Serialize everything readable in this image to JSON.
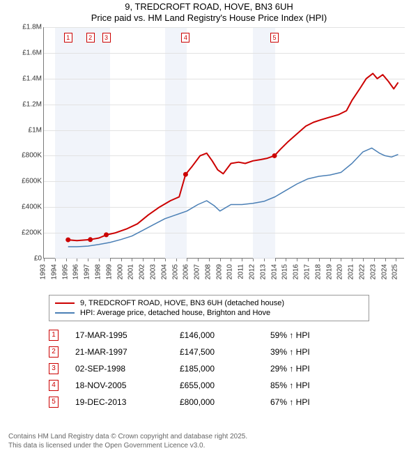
{
  "title": "9, TREDCROFT ROAD, HOVE, BN3 6UH",
  "subtitle": "Price paid vs. HM Land Registry's House Price Index (HPI)",
  "chart": {
    "type": "line",
    "xlim": [
      1993,
      2025.8
    ],
    "ylim": [
      0,
      1800000
    ],
    "ytick_step": 200000,
    "ytick_labels": [
      "£0",
      "£200K",
      "£400K",
      "£600K",
      "£800K",
      "£1M",
      "£1.2M",
      "£1.4M",
      "£1.6M",
      "£1.8M"
    ],
    "xticks": [
      1993,
      1994,
      1995,
      1996,
      1997,
      1998,
      1999,
      2000,
      2001,
      2002,
      2003,
      2004,
      2005,
      2006,
      2007,
      2008,
      2009,
      2010,
      2011,
      2012,
      2013,
      2014,
      2015,
      2016,
      2017,
      2018,
      2019,
      2020,
      2021,
      2022,
      2023,
      2024,
      2025
    ],
    "tint_bands": [
      [
        1994,
        1999
      ],
      [
        2004,
        2006
      ],
      [
        2012,
        2014
      ]
    ],
    "background_color": "#ffffff",
    "grid_color": "#e2e2e2",
    "tint_color": "#eef2f9",
    "axis_color": "#7a7a7a",
    "series": [
      {
        "name": "9, TREDCROFT ROAD, HOVE, BN3 6UH (detached house)",
        "color": "#cc0000",
        "width": 2,
        "points": [
          [
            1995.2,
            146000
          ],
          [
            1996,
            140000
          ],
          [
            1997.2,
            147500
          ],
          [
            1998,
            160000
          ],
          [
            1998.7,
            185000
          ],
          [
            1999.5,
            200000
          ],
          [
            2000.5,
            230000
          ],
          [
            2001.5,
            270000
          ],
          [
            2002.5,
            340000
          ],
          [
            2003.5,
            400000
          ],
          [
            2004.5,
            450000
          ],
          [
            2005.3,
            480000
          ],
          [
            2005.88,
            655000
          ],
          [
            2006.5,
            720000
          ],
          [
            2007.2,
            800000
          ],
          [
            2007.8,
            820000
          ],
          [
            2008.3,
            760000
          ],
          [
            2008.8,
            690000
          ],
          [
            2009.3,
            660000
          ],
          [
            2010,
            740000
          ],
          [
            2010.7,
            750000
          ],
          [
            2011.3,
            740000
          ],
          [
            2012,
            760000
          ],
          [
            2012.7,
            770000
          ],
          [
            2013.3,
            780000
          ],
          [
            2013.96,
            800000
          ],
          [
            2014.5,
            850000
          ],
          [
            2015.2,
            910000
          ],
          [
            2016,
            970000
          ],
          [
            2016.8,
            1030000
          ],
          [
            2017.5,
            1060000
          ],
          [
            2018.2,
            1080000
          ],
          [
            2019,
            1100000
          ],
          [
            2019.8,
            1120000
          ],
          [
            2020.5,
            1150000
          ],
          [
            2021,
            1230000
          ],
          [
            2021.7,
            1320000
          ],
          [
            2022.3,
            1400000
          ],
          [
            2022.9,
            1440000
          ],
          [
            2023.3,
            1400000
          ],
          [
            2023.8,
            1430000
          ],
          [
            2024.3,
            1380000
          ],
          [
            2024.8,
            1320000
          ],
          [
            2025.2,
            1370000
          ]
        ]
      },
      {
        "name": "HPI: Average price, detached house, Brighton and Hove",
        "color": "#4a7fb5",
        "width": 1.5,
        "points": [
          [
            1995.2,
            92000
          ],
          [
            1996,
            92000
          ],
          [
            1997,
            97000
          ],
          [
            1998,
            110000
          ],
          [
            1999,
            125000
          ],
          [
            2000,
            148000
          ],
          [
            2001,
            175000
          ],
          [
            2002,
            220000
          ],
          [
            2003,
            265000
          ],
          [
            2004,
            310000
          ],
          [
            2005,
            340000
          ],
          [
            2006,
            370000
          ],
          [
            2007,
            420000
          ],
          [
            2007.8,
            450000
          ],
          [
            2008.5,
            410000
          ],
          [
            2009,
            370000
          ],
          [
            2010,
            420000
          ],
          [
            2011,
            420000
          ],
          [
            2012,
            430000
          ],
          [
            2013,
            445000
          ],
          [
            2014,
            480000
          ],
          [
            2015,
            530000
          ],
          [
            2016,
            580000
          ],
          [
            2017,
            620000
          ],
          [
            2018,
            640000
          ],
          [
            2019,
            650000
          ],
          [
            2020,
            670000
          ],
          [
            2021,
            740000
          ],
          [
            2022,
            830000
          ],
          [
            2022.8,
            860000
          ],
          [
            2023.5,
            820000
          ],
          [
            2024,
            800000
          ],
          [
            2024.6,
            790000
          ],
          [
            2025.2,
            810000
          ]
        ]
      }
    ],
    "sale_markers": [
      {
        "n": 1,
        "x": 1995.2,
        "color": "#cc0000"
      },
      {
        "n": 2,
        "x": 1997.22,
        "color": "#cc0000"
      },
      {
        "n": 3,
        "x": 1998.67,
        "color": "#cc0000"
      },
      {
        "n": 4,
        "x": 2005.88,
        "color": "#cc0000"
      },
      {
        "n": 5,
        "x": 2013.96,
        "color": "#cc0000"
      }
    ]
  },
  "legend": {
    "items": [
      {
        "color": "#cc0000",
        "label": "9, TREDCROFT ROAD, HOVE, BN3 6UH (detached house)"
      },
      {
        "color": "#4a7fb5",
        "label": "HPI: Average price, detached house, Brighton and Hove"
      }
    ]
  },
  "sales": [
    {
      "n": 1,
      "color": "#cc0000",
      "date": "17-MAR-1995",
      "price": "£146,000",
      "hpi": "59% ↑ HPI"
    },
    {
      "n": 2,
      "color": "#cc0000",
      "date": "21-MAR-1997",
      "price": "£147,500",
      "hpi": "39% ↑ HPI"
    },
    {
      "n": 3,
      "color": "#cc0000",
      "date": "02-SEP-1998",
      "price": "£185,000",
      "hpi": "29% ↑ HPI"
    },
    {
      "n": 4,
      "color": "#cc0000",
      "date": "18-NOV-2005",
      "price": "£655,000",
      "hpi": "85% ↑ HPI"
    },
    {
      "n": 5,
      "color": "#cc0000",
      "date": "19-DEC-2013",
      "price": "£800,000",
      "hpi": "67% ↑ HPI"
    }
  ],
  "footer": {
    "line1": "Contains HM Land Registry data © Crown copyright and database right 2025.",
    "line2": "This data is licensed under the Open Government Licence v3.0."
  }
}
